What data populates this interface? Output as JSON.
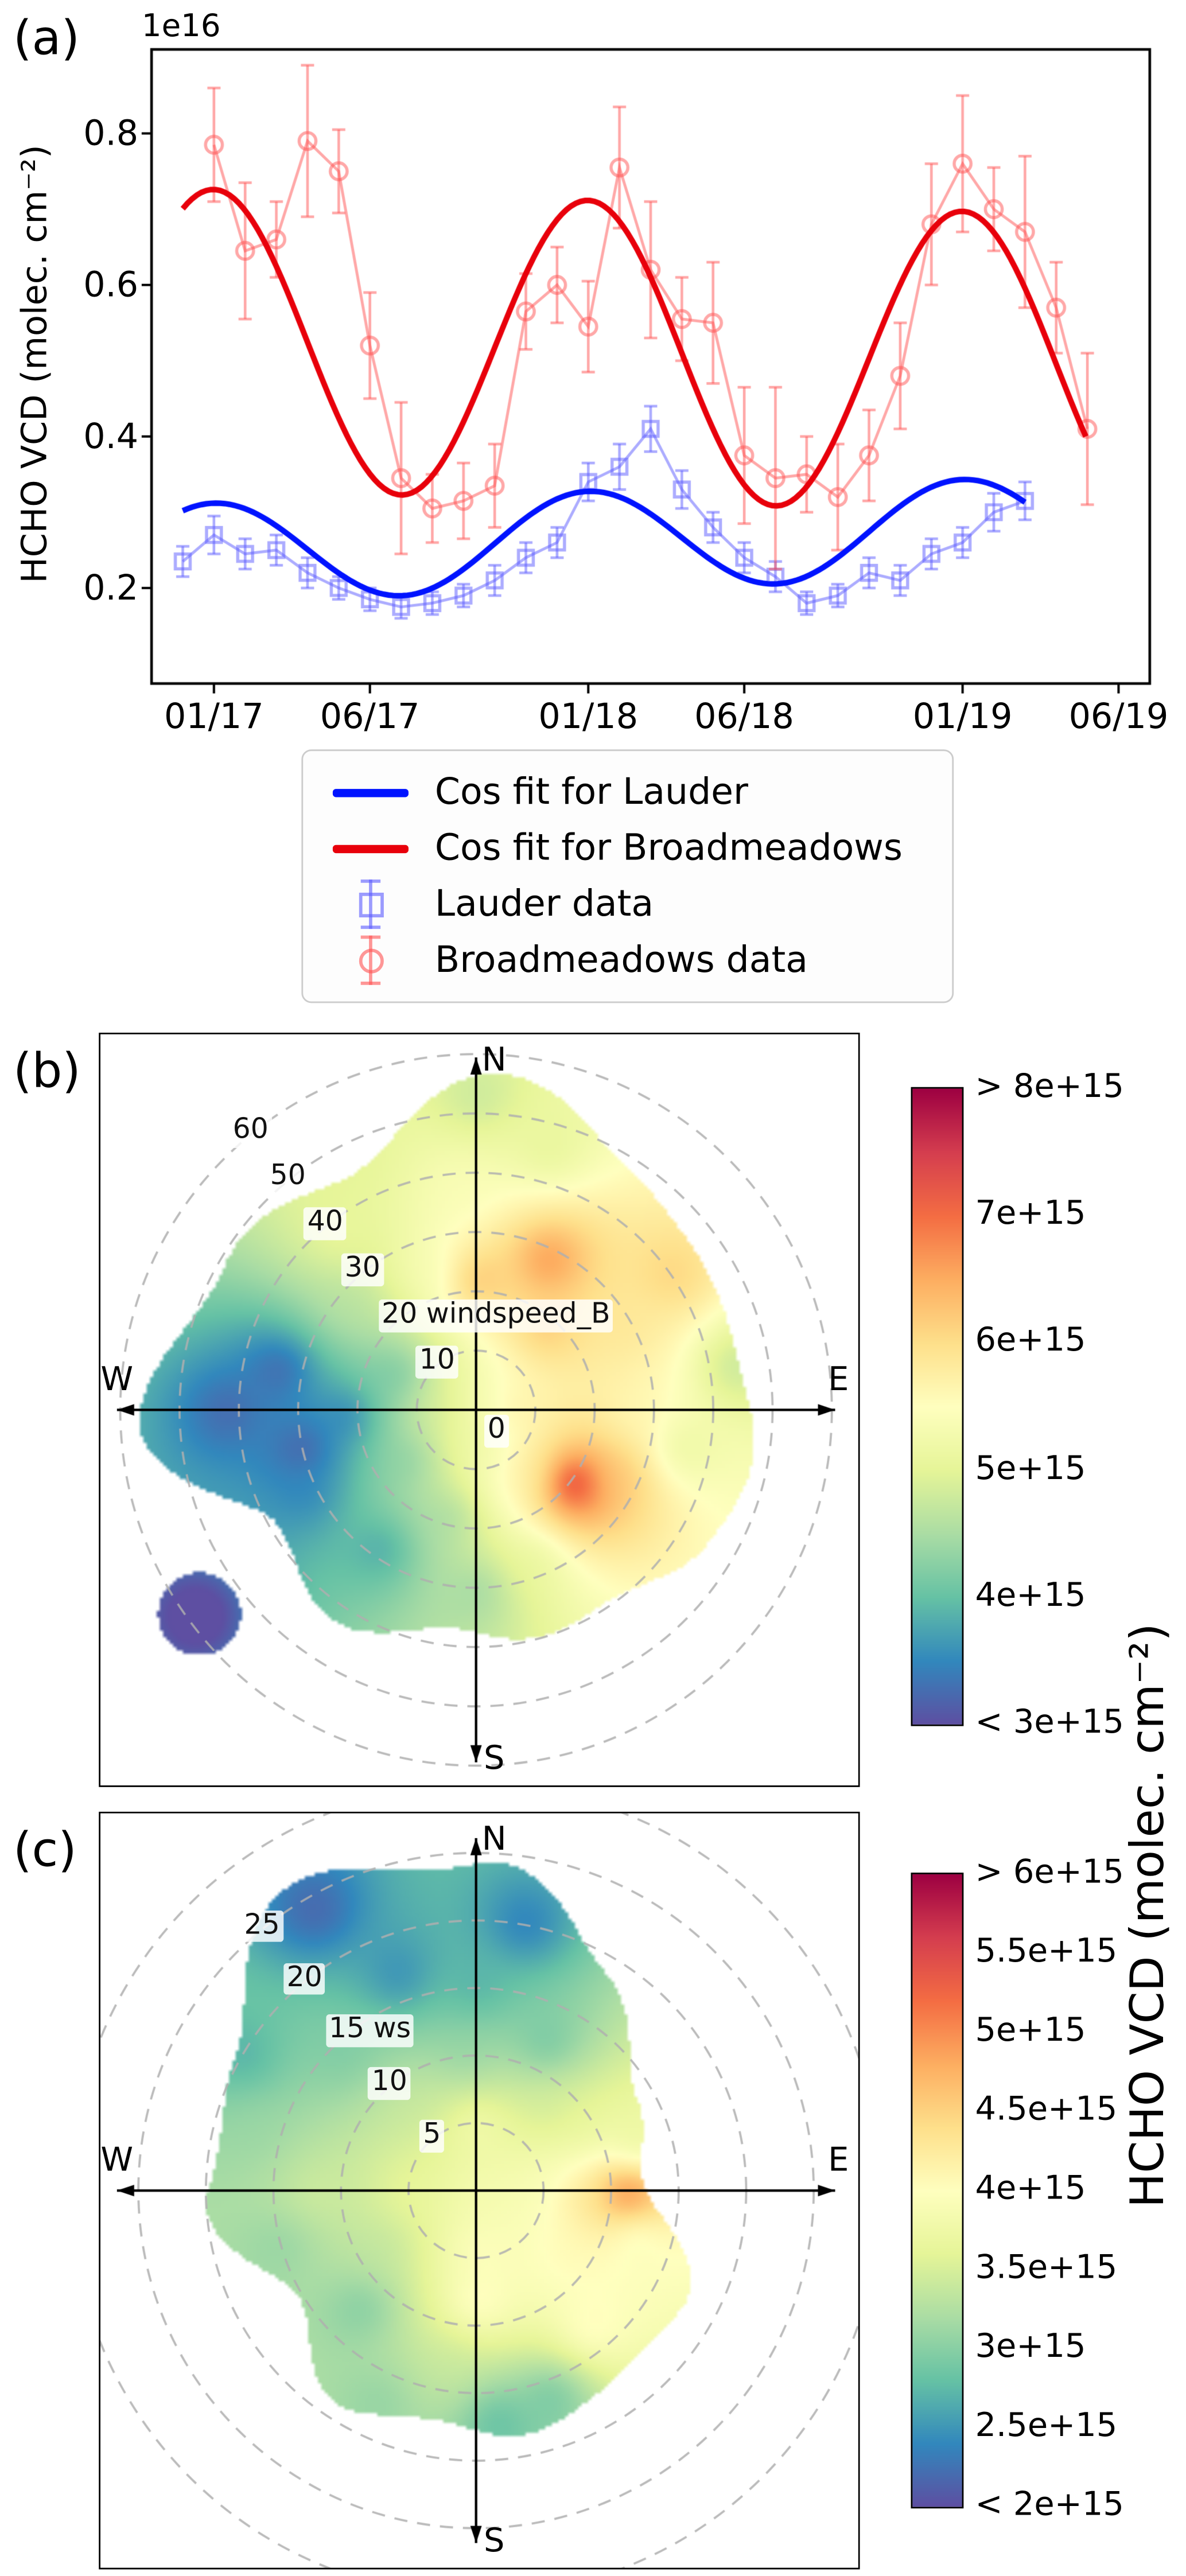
{
  "page": {
    "background": "#ffffff"
  },
  "panels": {
    "a": {
      "label": "(a)"
    },
    "b": {
      "label": "(b)"
    },
    "c": {
      "label": "(c)"
    }
  },
  "right_axis_label": "HCHO VCD (molec. cm⁻²)",
  "chart_data": [
    {
      "type": "line",
      "panel": "a",
      "ylabel": "HCHO VCD (molec. cm⁻²)",
      "y_offset_text": "1e16",
      "value_units": "x1e16 molec. cm-2",
      "xlim": [
        "11/16",
        "07/19"
      ],
      "ylim": [
        0.07,
        0.91
      ],
      "xticks": [
        "01/17",
        "06/17",
        "01/18",
        "06/18",
        "01/19",
        "06/19"
      ],
      "yticks": [
        "0.2",
        "0.4",
        "0.6",
        "0.8"
      ],
      "series": [
        {
          "name": "Lauder data",
          "marker": "square",
          "color": "#5a5aff",
          "alpha": 0.5,
          "months": [
            "12/16",
            "01/17",
            "02/17",
            "03/17",
            "04/17",
            "05/17",
            "06/17",
            "07/17",
            "08/17",
            "09/17",
            "10/17",
            "11/17",
            "12/17",
            "01/18",
            "02/18",
            "03/18",
            "04/18",
            "05/18",
            "06/18",
            "07/18",
            "08/18",
            "09/18",
            "10/18",
            "11/18",
            "12/18",
            "01/19",
            "02/19",
            "03/19"
          ],
          "values": [
            0.235,
            0.27,
            0.245,
            0.25,
            0.22,
            0.2,
            0.185,
            0.175,
            0.18,
            0.19,
            0.21,
            0.24,
            0.26,
            0.34,
            0.36,
            0.41,
            0.33,
            0.28,
            0.24,
            0.215,
            0.18,
            0.19,
            0.22,
            0.21,
            0.245,
            0.26,
            0.3,
            0.315
          ],
          "errors": [
            0.02,
            0.025,
            0.02,
            0.02,
            0.02,
            0.015,
            0.015,
            0.015,
            0.015,
            0.015,
            0.02,
            0.02,
            0.02,
            0.025,
            0.03,
            0.03,
            0.025,
            0.02,
            0.02,
            0.02,
            0.015,
            0.015,
            0.02,
            0.02,
            0.02,
            0.02,
            0.025,
            0.025
          ]
        },
        {
          "name": "Broadmeadows data",
          "marker": "circle",
          "color": "#ff5252",
          "alpha": 0.5,
          "months": [
            "01/17",
            "02/17",
            "03/17",
            "04/17",
            "05/17",
            "06/17",
            "07/17",
            "08/17",
            "09/17",
            "10/17",
            "11/17",
            "12/17",
            "01/18",
            "02/18",
            "03/18",
            "04/18",
            "05/18",
            "06/18",
            "07/18",
            "08/18",
            "09/18",
            "10/18",
            "11/18",
            "12/18",
            "01/19",
            "02/19",
            "03/19",
            "04/19",
            "05/19"
          ],
          "values": [
            0.785,
            0.645,
            0.66,
            0.79,
            0.75,
            0.52,
            0.345,
            0.305,
            0.315,
            0.335,
            0.565,
            0.6,
            0.545,
            0.755,
            0.62,
            0.555,
            0.55,
            0.375,
            0.345,
            0.35,
            0.32,
            0.375,
            0.48,
            0.68,
            0.76,
            0.7,
            0.67,
            0.57,
            0.41
          ],
          "errors": [
            0.075,
            0.09,
            0.05,
            0.1,
            0.055,
            0.07,
            0.1,
            0.045,
            0.05,
            0.055,
            0.05,
            0.05,
            0.06,
            0.08,
            0.09,
            0.055,
            0.08,
            0.09,
            0.12,
            0.05,
            0.07,
            0.06,
            0.07,
            0.08,
            0.09,
            0.055,
            0.1,
            0.06,
            0.1
          ]
        }
      ],
      "fits": [
        {
          "name": "Cos fit for Lauder",
          "color": "#0013ff",
          "mean": 0.247,
          "trend_per_month": 0.0013,
          "amplitude": 0.065,
          "peak_month": "01/17",
          "start_month": "12/16",
          "end_month": "03/19"
        },
        {
          "name": "Cos fit for Broadmeadows",
          "color": "#e8000b",
          "mean": 0.528,
          "trend_per_month": -0.0012,
          "amplitude": 0.198,
          "peak_month": "01/17",
          "start_month": "12/16",
          "end_month": "05/19"
        }
      ],
      "legend": [
        {
          "label": "Cos fit for Lauder"
        },
        {
          "label": "Cos fit for Broadmeadows"
        },
        {
          "label": "Lauder data"
        },
        {
          "label": "Broadmeadows data"
        }
      ]
    },
    {
      "type": "heatmap",
      "panel": "b",
      "style": "bivariate_polar",
      "radial_axis_label": "windspeed_B",
      "compass": {
        "n": "N",
        "e": "E",
        "s": "S",
        "w": "W"
      },
      "rings": [
        {
          "r": 0,
          "label": "0"
        },
        {
          "r": 10,
          "label": "10"
        },
        {
          "r": 20,
          "label": "20 windspeed_B"
        },
        {
          "r": 30,
          "label": "30"
        },
        {
          "r": 40,
          "label": "40"
        },
        {
          "r": 50,
          "label": "50"
        },
        {
          "r": 60,
          "label": "60"
        }
      ],
      "grid_step": 10,
      "grid_max": 60,
      "colormap": [
        "#5e4fa2",
        "#3288bd",
        "#66c2a5",
        "#abdda4",
        "#e6f598",
        "#ffffbf",
        "#fee08b",
        "#fdae61",
        "#f46d43",
        "#d53e4f",
        "#9e0142"
      ],
      "colorbar": {
        "domain": [
          3,
          8
        ],
        "scale": "1e15",
        "units": "molec. cm⁻²",
        "ticks": [
          {
            "value": 8,
            "label": "> 8e+15"
          },
          {
            "value": 7,
            "label": "7e+15"
          },
          {
            "value": 6,
            "label": "6e+15"
          },
          {
            "value": 5,
            "label": "5e+15"
          },
          {
            "value": 4,
            "label": "4e+15"
          },
          {
            "value": 3,
            "label": "< 3e+15"
          }
        ]
      },
      "surface_points": [
        [
          0,
          0,
          5.4
        ],
        [
          90,
          6,
          5.9
        ],
        [
          180,
          4,
          5.1
        ],
        [
          270,
          6,
          4.8
        ],
        [
          0,
          22,
          6.6
        ],
        [
          25,
          28,
          7.0
        ],
        [
          40,
          18,
          6.4
        ],
        [
          55,
          40,
          6.2
        ],
        [
          60,
          28,
          5.9
        ],
        [
          355,
          38,
          5.4
        ],
        [
          15,
          46,
          5.0
        ],
        [
          0,
          53,
          4.7
        ],
        [
          80,
          44,
          4.6
        ],
        [
          90,
          26,
          5.6
        ],
        [
          100,
          35,
          5.0
        ],
        [
          115,
          26,
          6.3
        ],
        [
          127,
          20,
          8.7
        ],
        [
          140,
          13,
          6.0
        ],
        [
          150,
          12,
          5.6
        ],
        [
          160,
          27,
          5.0
        ],
        [
          170,
          8,
          5.2
        ],
        [
          180,
          30,
          4.3
        ],
        [
          195,
          18,
          4.3
        ],
        [
          215,
          28,
          3.6
        ],
        [
          235,
          14,
          4.1
        ],
        [
          245,
          32,
          3.4
        ],
        [
          258,
          30,
          2.9
        ],
        [
          270,
          42,
          3.1
        ],
        [
          268,
          22,
          3.2
        ],
        [
          282,
          34,
          3.0
        ],
        [
          295,
          15,
          3.9
        ],
        [
          310,
          28,
          4.6
        ],
        [
          322,
          38,
          5.1
        ],
        [
          333,
          48,
          5.0
        ],
        [
          340,
          25,
          5.3
        ],
        [
          234,
          58,
          2.7
        ]
      ],
      "boundary_max_ws": [
        54,
        49,
        46,
        48,
        42,
        38,
        40,
        42,
        38,
        55,
        52,
        46
      ],
      "extra_blobs": [
        {
          "dir": 234,
          "ws": 58,
          "radius": 7,
          "value": 2.7
        }
      ]
    },
    {
      "type": "heatmap",
      "panel": "c",
      "style": "bivariate_polar",
      "radial_axis_label": "ws",
      "compass": {
        "n": "N",
        "e": "E",
        "s": "S",
        "w": "W"
      },
      "rings": [
        {
          "r": 5,
          "label": "5"
        },
        {
          "r": 10,
          "label": "10"
        },
        {
          "r": 15,
          "label": "15 ws"
        },
        {
          "r": 20,
          "label": "20"
        },
        {
          "r": 25,
          "label": "25"
        }
      ],
      "grid_step": 5,
      "grid_max": 30,
      "colormap": [
        "#5e4fa2",
        "#3288bd",
        "#66c2a5",
        "#abdda4",
        "#e6f598",
        "#ffffbf",
        "#fee08b",
        "#fdae61",
        "#f46d43",
        "#d53e4f",
        "#9e0142"
      ],
      "colorbar": {
        "domain": [
          2,
          6
        ],
        "scale": "1e15",
        "units": "molec. cm⁻²",
        "ticks": [
          {
            "value": 6,
            "label": "> 6e+15"
          },
          {
            "value": 5.5,
            "label": "5.5e+15"
          },
          {
            "value": 5,
            "label": "5e+15"
          },
          {
            "value": 4.5,
            "label": "4.5e+15"
          },
          {
            "value": 4,
            "label": "4e+15"
          },
          {
            "value": 3.5,
            "label": "3.5e+15"
          },
          {
            "value": 3,
            "label": "3e+15"
          },
          {
            "value": 2.5,
            "label": "2.5e+15"
          },
          {
            "value": 2,
            "label": "< 2e+15"
          }
        ]
      },
      "surface_points": [
        [
          0,
          0,
          3.9
        ],
        [
          0,
          5,
          4.0
        ],
        [
          90,
          4,
          3.9
        ],
        [
          180,
          4,
          4.1
        ],
        [
          270,
          5,
          3.7
        ],
        [
          355,
          10,
          3.0
        ],
        [
          0,
          15,
          2.6
        ],
        [
          10,
          20,
          2.2
        ],
        [
          25,
          12,
          2.7
        ],
        [
          40,
          8,
          3.4
        ],
        [
          330,
          24,
          2.05
        ],
        [
          340,
          17,
          2.3
        ],
        [
          315,
          14,
          2.9
        ],
        [
          300,
          20,
          2.6
        ],
        [
          320,
          8,
          3.4
        ],
        [
          60,
          9,
          3.6
        ],
        [
          75,
          12,
          3.3
        ],
        [
          90,
          11,
          6.3
        ],
        [
          93,
          8,
          4.4
        ],
        [
          105,
          12,
          3.6
        ],
        [
          125,
          8,
          4.1
        ],
        [
          140,
          13,
          4.2
        ],
        [
          160,
          16,
          2.7
        ],
        [
          175,
          17,
          2.6
        ],
        [
          180,
          8,
          4.3
        ],
        [
          190,
          13,
          3.4
        ],
        [
          205,
          17,
          3.0
        ],
        [
          225,
          12,
          2.8
        ],
        [
          240,
          8,
          3.3
        ],
        [
          255,
          15,
          3.0
        ],
        [
          270,
          12,
          3.5
        ],
        [
          285,
          17,
          3.1
        ]
      ],
      "boundary_max_ws": [
        23,
        19,
        14,
        13.5,
        16,
        17,
        19,
        18.5,
        15,
        19,
        22,
        27
      ],
      "extra_blobs": []
    }
  ]
}
